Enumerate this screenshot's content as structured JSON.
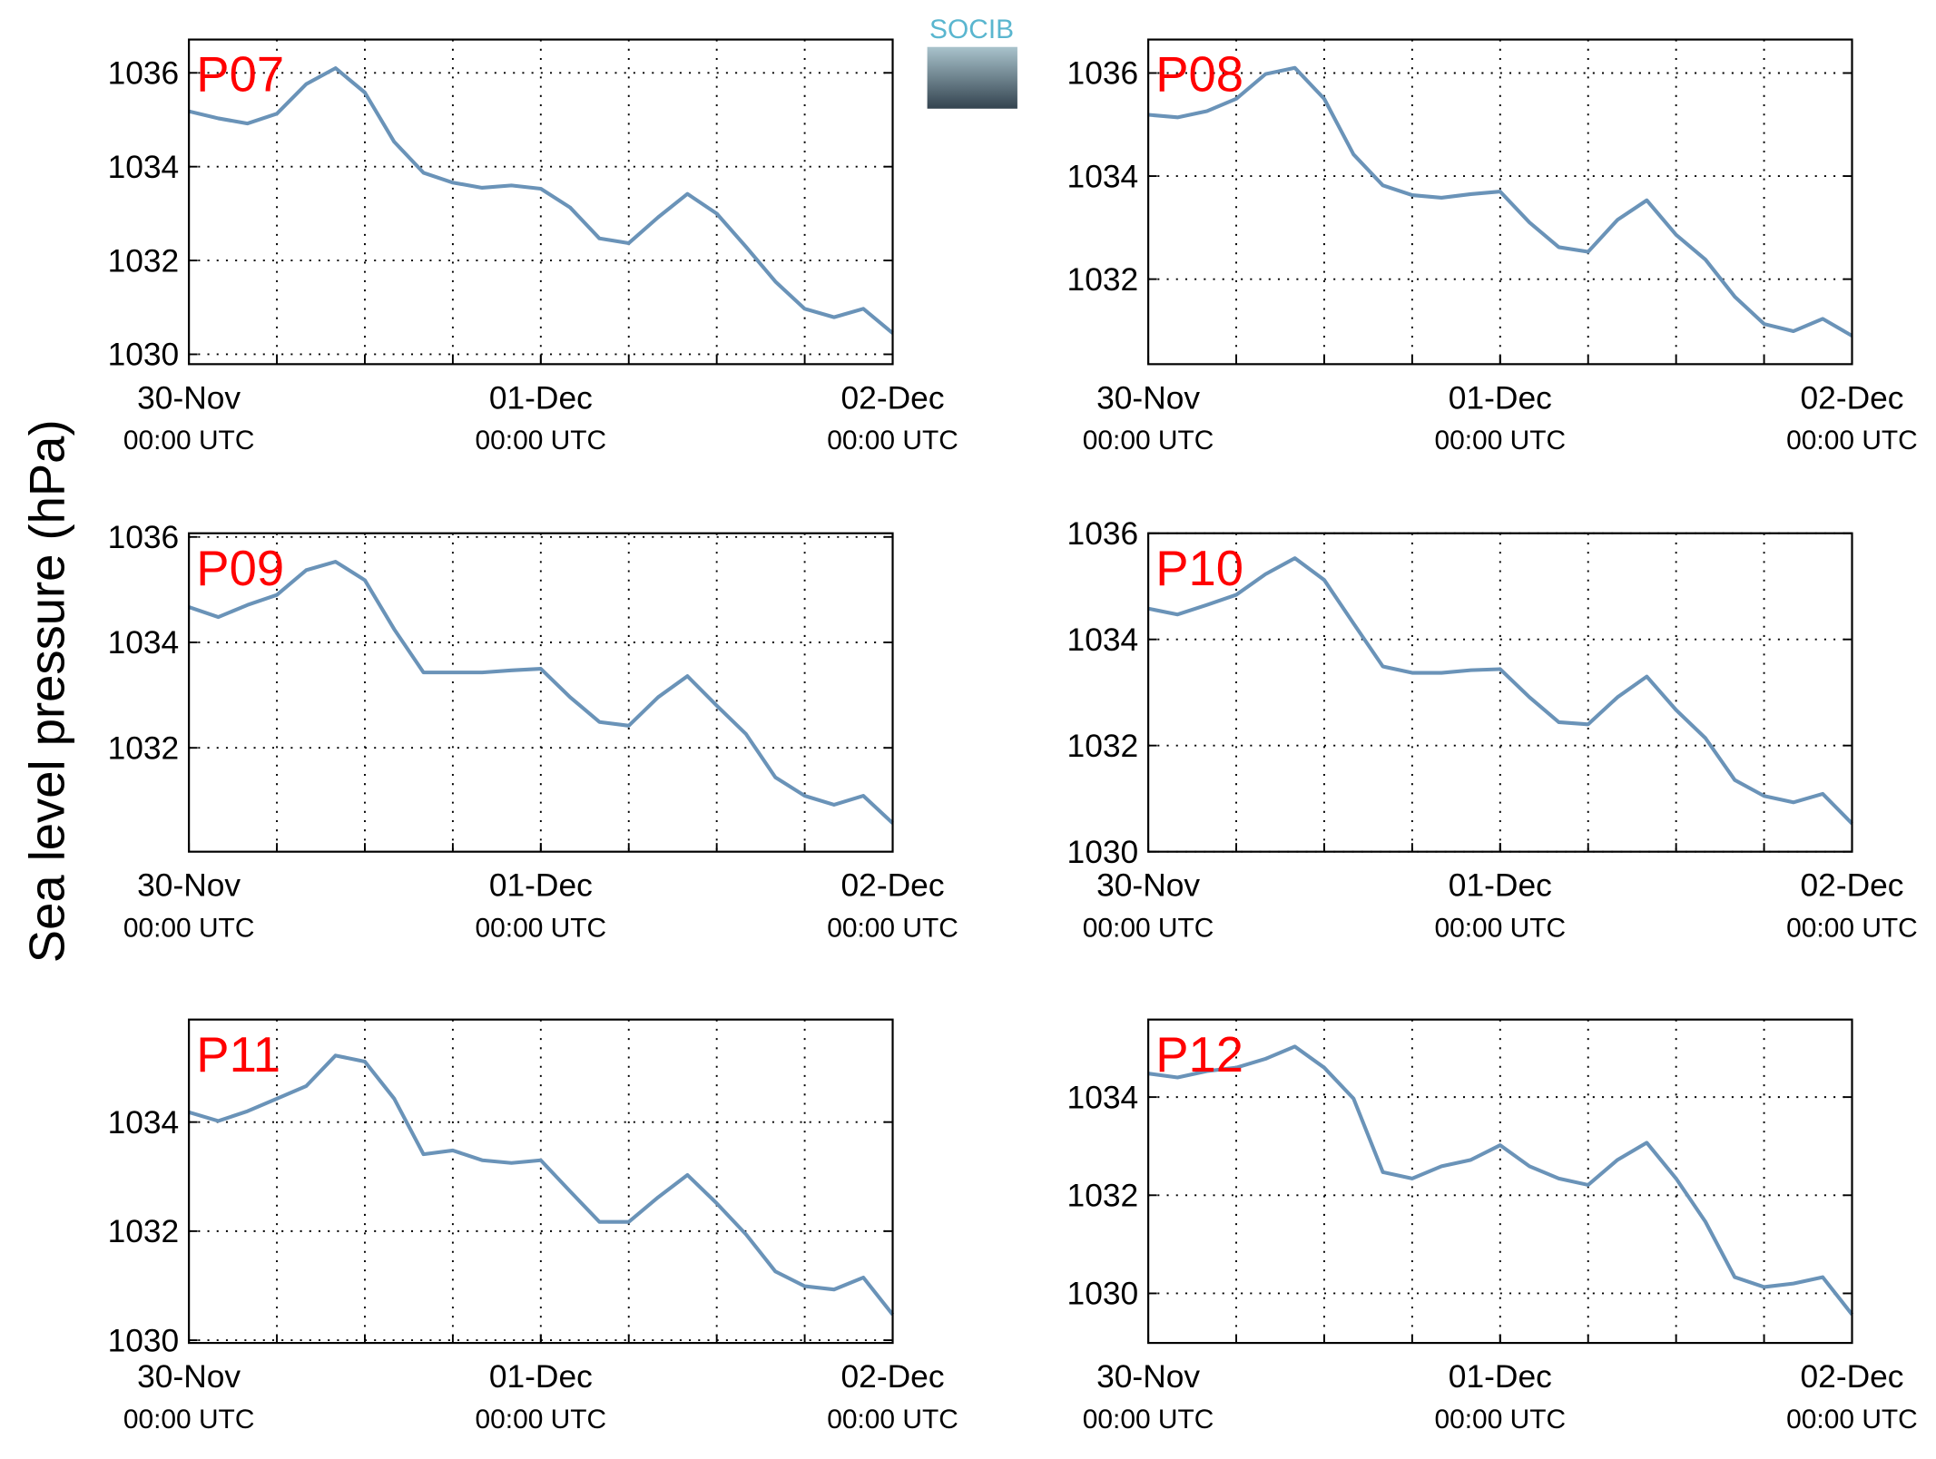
{
  "ylabel": "Sea level pressure (hPa)",
  "logo": "SOCIB",
  "chart_data": [
    {
      "type": "line",
      "label": "P07",
      "x": [
        0,
        2,
        4,
        6,
        8,
        10,
        12,
        14,
        16,
        18,
        20,
        22,
        24,
        26,
        28,
        30,
        32,
        34,
        36,
        38,
        40,
        42,
        44,
        46,
        48
      ],
      "series": [
        {
          "color": "#6a93b8",
          "values": [
            1035.18,
            1035.03,
            1034.92,
            1035.13,
            1035.76,
            1036.1,
            1035.58,
            1034.53,
            1033.87,
            1033.66,
            1033.55,
            1033.6,
            1033.53,
            1033.13,
            1032.47,
            1032.37,
            1032.92,
            1033.42,
            1033.0,
            1032.29,
            1031.55,
            1030.97,
            1030.79,
            1030.97,
            1030.45
          ]
        }
      ],
      "xlim": [
        0,
        48
      ],
      "xticks": [
        {
          "value": 0,
          "label": "30-Nov\n00:00 UTC"
        },
        {
          "value": 24,
          "label": "01-Dec\n00:00 UTC"
        },
        {
          "value": 48,
          "label": "02-Dec\n00:00 UTC"
        }
      ],
      "xgrid": [
        6,
        12,
        18,
        24,
        30,
        36,
        42
      ],
      "ylim": [
        1029.79,
        1036.71
      ],
      "yticks": [
        1030,
        1032,
        1034,
        1036
      ],
      "grid": true
    },
    {
      "type": "line",
      "label": "P08",
      "x": [
        0,
        2,
        4,
        6,
        8,
        10,
        12,
        14,
        16,
        18,
        20,
        22,
        24,
        26,
        28,
        30,
        32,
        34,
        36,
        38,
        40,
        42,
        44,
        46,
        48
      ],
      "series": [
        {
          "color": "#6a93b8",
          "values": [
            1035.19,
            1035.14,
            1035.26,
            1035.5,
            1035.98,
            1036.1,
            1035.5,
            1034.42,
            1033.82,
            1033.63,
            1033.58,
            1033.65,
            1033.7,
            1033.1,
            1032.62,
            1032.53,
            1033.15,
            1033.53,
            1032.86,
            1032.38,
            1031.66,
            1031.13,
            1030.99,
            1031.23,
            1030.9
          ]
        }
      ],
      "xlim": [
        0,
        48
      ],
      "xticks": [
        {
          "value": 0,
          "label": "30-Nov\n00:00 UTC"
        },
        {
          "value": 24,
          "label": "01-Dec\n00:00 UTC"
        },
        {
          "value": 48,
          "label": "02-Dec\n00:00 UTC"
        }
      ],
      "xgrid": [
        6,
        12,
        18,
        24,
        30,
        36,
        42
      ],
      "ylim": [
        1030.35,
        1036.65
      ],
      "yticks": [
        1032,
        1034,
        1036
      ],
      "grid": true
    },
    {
      "type": "line",
      "label": "P09",
      "x": [
        0,
        2,
        4,
        6,
        8,
        10,
        12,
        14,
        16,
        18,
        20,
        22,
        24,
        26,
        28,
        30,
        32,
        34,
        36,
        38,
        40,
        42,
        44,
        46,
        48
      ],
      "series": [
        {
          "color": "#6a93b8",
          "values": [
            1034.67,
            1034.48,
            1034.71,
            1034.9,
            1035.37,
            1035.53,
            1035.18,
            1034.25,
            1033.43,
            1033.43,
            1033.43,
            1033.47,
            1033.5,
            1032.96,
            1032.49,
            1032.42,
            1032.96,
            1033.36,
            1032.8,
            1032.26,
            1031.44,
            1031.09,
            1030.92,
            1031.09,
            1030.57
          ]
        }
      ],
      "xlim": [
        0,
        48
      ],
      "xticks": [
        {
          "value": 0,
          "label": "30-Nov\n00:00 UTC"
        },
        {
          "value": 24,
          "label": "01-Dec\n00:00 UTC"
        },
        {
          "value": 48,
          "label": "02-Dec\n00:00 UTC"
        }
      ],
      "xgrid": [
        6,
        12,
        18,
        24,
        30,
        36,
        42
      ],
      "ylim": [
        1030.03,
        1036.07
      ],
      "yticks": [
        1032,
        1034,
        1036
      ],
      "grid": true
    },
    {
      "type": "line",
      "label": "P10",
      "x": [
        0,
        2,
        4,
        6,
        8,
        10,
        12,
        14,
        16,
        18,
        20,
        22,
        24,
        26,
        28,
        30,
        32,
        34,
        36,
        38,
        40,
        42,
        44,
        46,
        48
      ],
      "series": [
        {
          "color": "#6a93b8",
          "values": [
            1034.58,
            1034.47,
            1034.65,
            1034.84,
            1035.23,
            1035.53,
            1035.12,
            1034.3,
            1033.49,
            1033.37,
            1033.37,
            1033.42,
            1033.44,
            1032.91,
            1032.44,
            1032.4,
            1032.91,
            1033.3,
            1032.67,
            1032.14,
            1031.35,
            1031.05,
            1030.93,
            1031.09,
            1030.53
          ]
        }
      ],
      "xlim": [
        0,
        48
      ],
      "xticks": [
        {
          "value": 0,
          "label": "30-Nov\n00:00 UTC"
        },
        {
          "value": 24,
          "label": "01-Dec\n00:00 UTC"
        },
        {
          "value": 48,
          "label": "02-Dec\n00:00 UTC"
        }
      ],
      "xgrid": [
        6,
        12,
        18,
        24,
        30,
        36,
        42
      ],
      "ylim": [
        1030,
        1036
      ],
      "yticks": [
        1030,
        1032,
        1034,
        1036
      ],
      "grid": true
    },
    {
      "type": "line",
      "label": "P11",
      "x": [
        0,
        2,
        4,
        6,
        8,
        10,
        12,
        14,
        16,
        18,
        20,
        22,
        24,
        26,
        28,
        30,
        32,
        34,
        36,
        38,
        40,
        42,
        44,
        46,
        48
      ],
      "series": [
        {
          "color": "#6a93b8",
          "values": [
            1034.18,
            1034.02,
            1034.2,
            1034.43,
            1034.66,
            1035.22,
            1035.11,
            1034.43,
            1033.41,
            1033.48,
            1033.3,
            1033.25,
            1033.3,
            1032.73,
            1032.17,
            1032.17,
            1032.62,
            1033.03,
            1032.51,
            1031.94,
            1031.26,
            1030.99,
            1030.93,
            1031.15,
            1030.47
          ]
        }
      ],
      "xlim": [
        0,
        48
      ],
      "xticks": [
        {
          "value": 0,
          "label": "30-Nov\n00:00 UTC"
        },
        {
          "value": 24,
          "label": "01-Dec\n00:00 UTC"
        },
        {
          "value": 48,
          "label": "02-Dec\n00:00 UTC"
        }
      ],
      "xgrid": [
        6,
        12,
        18,
        24,
        30,
        36,
        42
      ],
      "ylim": [
        1029.95,
        1035.88
      ],
      "yticks": [
        1030,
        1032,
        1034
      ],
      "grid": true
    },
    {
      "type": "line",
      "label": "P12",
      "x": [
        0,
        2,
        4,
        6,
        8,
        10,
        12,
        14,
        16,
        18,
        20,
        22,
        24,
        26,
        28,
        30,
        32,
        34,
        36,
        38,
        40,
        42,
        44,
        46,
        48
      ],
      "series": [
        {
          "color": "#6a93b8",
          "values": [
            1034.48,
            1034.4,
            1034.53,
            1034.6,
            1034.78,
            1035.03,
            1034.6,
            1033.97,
            1032.47,
            1032.34,
            1032.59,
            1032.72,
            1033.02,
            1032.59,
            1032.34,
            1032.21,
            1032.72,
            1033.07,
            1032.34,
            1031.46,
            1030.33,
            1030.13,
            1030.2,
            1030.33,
            1029.57
          ]
        }
      ],
      "xlim": [
        0,
        48
      ],
      "xticks": [
        {
          "value": 0,
          "label": "30-Nov\n00:00 UTC"
        },
        {
          "value": 24,
          "label": "01-Dec\n00:00 UTC"
        },
        {
          "value": 48,
          "label": "02-Dec\n00:00 UTC"
        }
      ],
      "xgrid": [
        6,
        12,
        18,
        24,
        30,
        36,
        42
      ],
      "ylim": [
        1028.99,
        1035.58
      ],
      "yticks": [
        1030,
        1032,
        1034
      ],
      "grid": true
    }
  ]
}
